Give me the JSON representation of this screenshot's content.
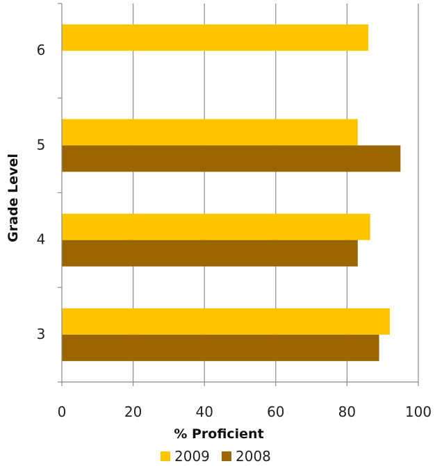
{
  "chart_data": {
    "type": "bar",
    "orientation": "horizontal",
    "xlabel": "% Proficient",
    "ylabel": "Grade Level",
    "xlim": [
      0,
      100
    ],
    "x_ticks": [
      "0",
      "20",
      "40",
      "60",
      "80",
      "100"
    ],
    "grid": true,
    "legend_position": "bottom",
    "categories": [
      "6",
      "5",
      "4",
      "3"
    ],
    "series": [
      {
        "name": "2009",
        "color": "#FFC600",
        "values": [
          86,
          83,
          86.5,
          92
        ]
      },
      {
        "name": "2008",
        "color": "#9B6600",
        "values": [
          null,
          95,
          83,
          89
        ]
      }
    ]
  }
}
